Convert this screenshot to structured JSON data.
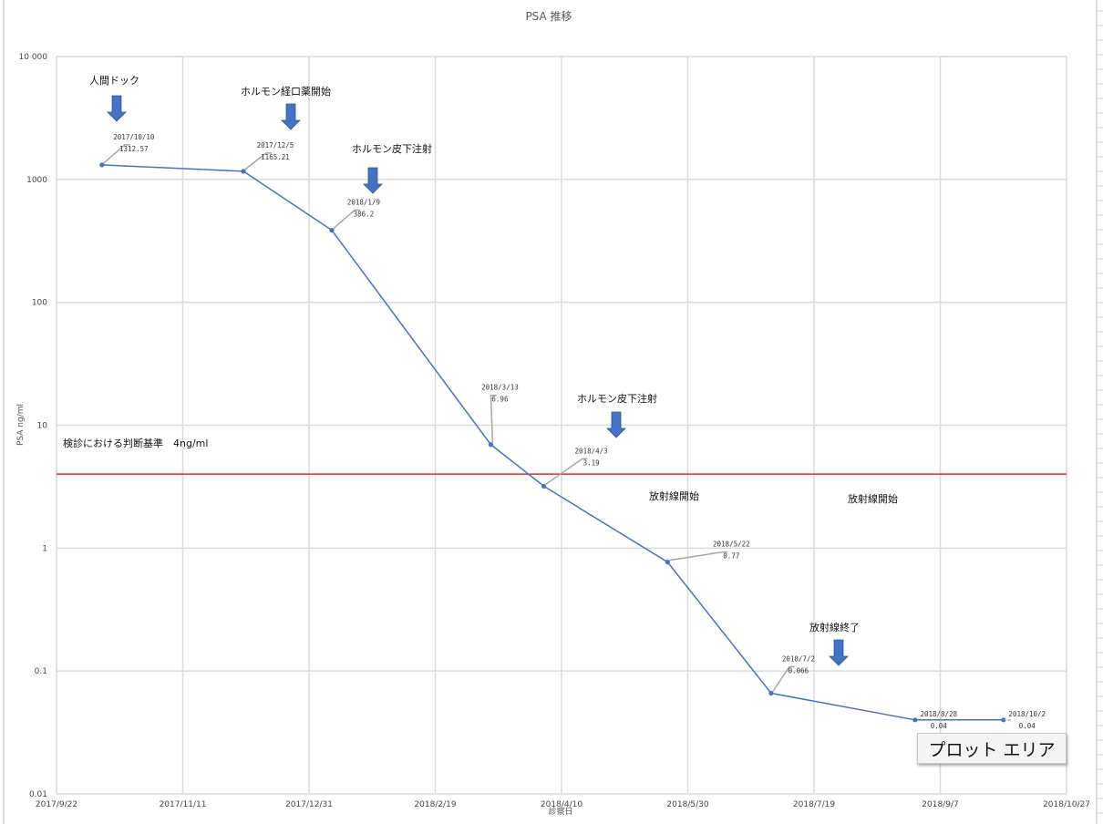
{
  "chart_data": {
    "type": "line",
    "title": "PSA 推移",
    "xlabel": "診察日",
    "ylabel": "PSA ng/ml",
    "yscale": "log",
    "ylim": [
      0.01,
      10000
    ],
    "xlim": [
      "2017/9/22",
      "2018/10/27"
    ],
    "grid": true,
    "y_ticks": [
      "0.01",
      "0.1",
      "1",
      "10",
      "100",
      "1000",
      "10 000"
    ],
    "x_ticks": [
      "2017/9/22",
      "2017/11/11",
      "2017/12/31",
      "2018/2/19",
      "2018/4/10",
      "2018/5/30",
      "2018/7/19",
      "2018/9/7",
      "2018/10/27"
    ],
    "series": [
      {
        "color": "#4472c4",
        "points": [
          {
            "x": "2017/10/10",
            "y": 1312.57,
            "date_label": "2017/10/10",
            "value_label": "1312.57"
          },
          {
            "x": "2017/12/5",
            "y": 1165.21,
            "date_label": "2017/12/5",
            "value_label": "1165.21"
          },
          {
            "x": "2018/1/9",
            "y": 386.2,
            "date_label": "2018/1/9",
            "value_label": "386.2"
          },
          {
            "x": "2018/3/13",
            "y": 6.96,
            "date_label": "2018/3/13",
            "value_label": "6.96"
          },
          {
            "x": "2018/4/3",
            "y": 3.19,
            "date_label": "2018/4/3",
            "value_label": "3.19"
          },
          {
            "x": "2018/5/22",
            "y": 0.77,
            "date_label": "2018/5/22",
            "value_label": "0.77"
          },
          {
            "x": "2018/7/2",
            "y": 0.066,
            "date_label": "2018/7/2",
            "value_label": "0.066"
          },
          {
            "x": "2018/8/28",
            "y": 0.04,
            "date_label": "2018/8/28",
            "value_label": "0.04"
          },
          {
            "x": "2018/10/2",
            "y": 0.04,
            "date_label": "2018/10/2",
            "value_label": "0.04"
          }
        ]
      }
    ],
    "threshold": {
      "y": 4,
      "color": "#e8281e",
      "label": "検診における判断基準　4ng/ml"
    },
    "annotations": [
      {
        "text": "人間ドック",
        "arrow": true
      },
      {
        "text": "ホルモン経口薬開始",
        "arrow": true
      },
      {
        "text": "ホルモン皮下注射",
        "arrow": true
      },
      {
        "text": "ホルモン皮下注射",
        "arrow": true
      },
      {
        "text": "放射線開始",
        "arrow": false
      },
      {
        "text": "放射線開始",
        "arrow": false
      },
      {
        "text": "放射線終了",
        "arrow": true
      }
    ],
    "arrow_color": "#4472c4",
    "leader_color": "#a6a6a6"
  },
  "tooltip": {
    "text": "プロット エリア"
  }
}
